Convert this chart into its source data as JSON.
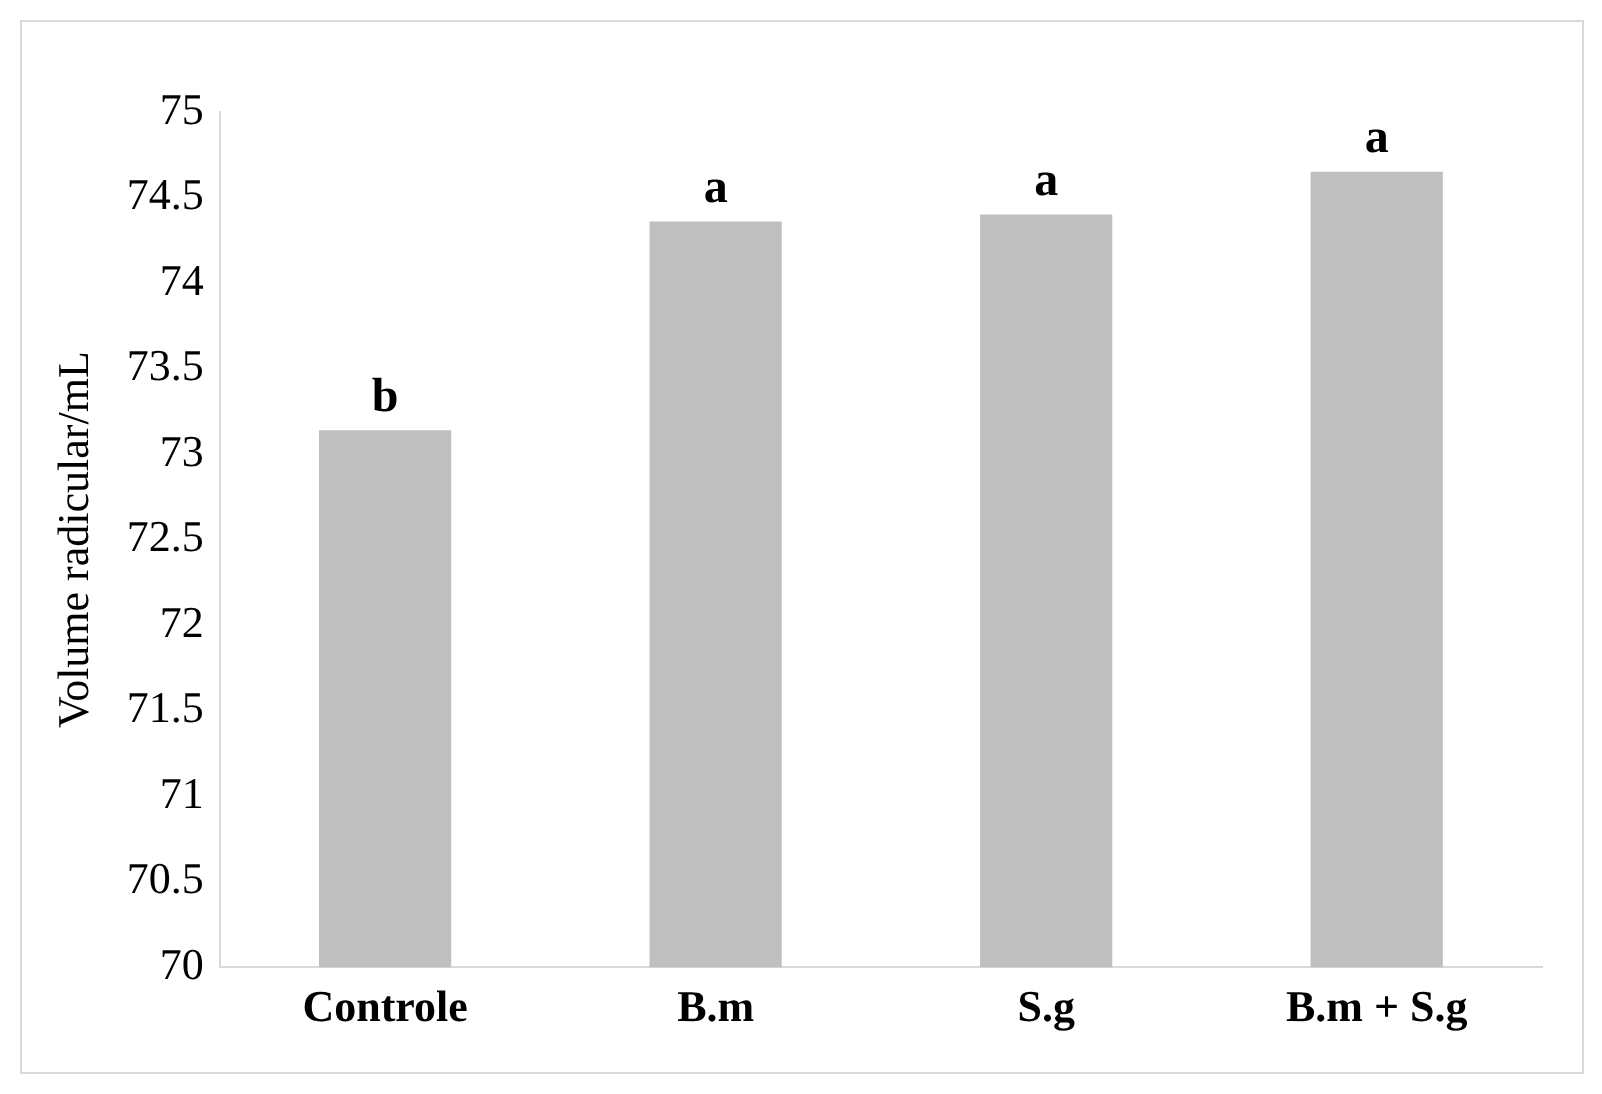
{
  "chart_data": {
    "type": "bar",
    "ylabel": "Volume radicular/mL",
    "categories": [
      "Controle",
      "B.m",
      "S.g",
      "B.m + S.g"
    ],
    "values": [
      73.14,
      74.36,
      74.4,
      74.65
    ],
    "color": "#bfbfbf",
    "ylim": [
      70,
      75
    ],
    "yticks": [
      70,
      70.5,
      71,
      71.5,
      72,
      72.5,
      73,
      73.5,
      74,
      74.5,
      75
    ],
    "grid": false,
    "legend": false,
    "annotations": [
      {
        "text": "b",
        "x": "Controle",
        "y": 73.14
      },
      {
        "text": "a",
        "x": "B.m",
        "y": 74.36
      },
      {
        "text": "a",
        "x": "S.g",
        "y": 74.4
      },
      {
        "text": "a",
        "x": "B.m + S.g",
        "y": 74.65
      }
    ]
  }
}
